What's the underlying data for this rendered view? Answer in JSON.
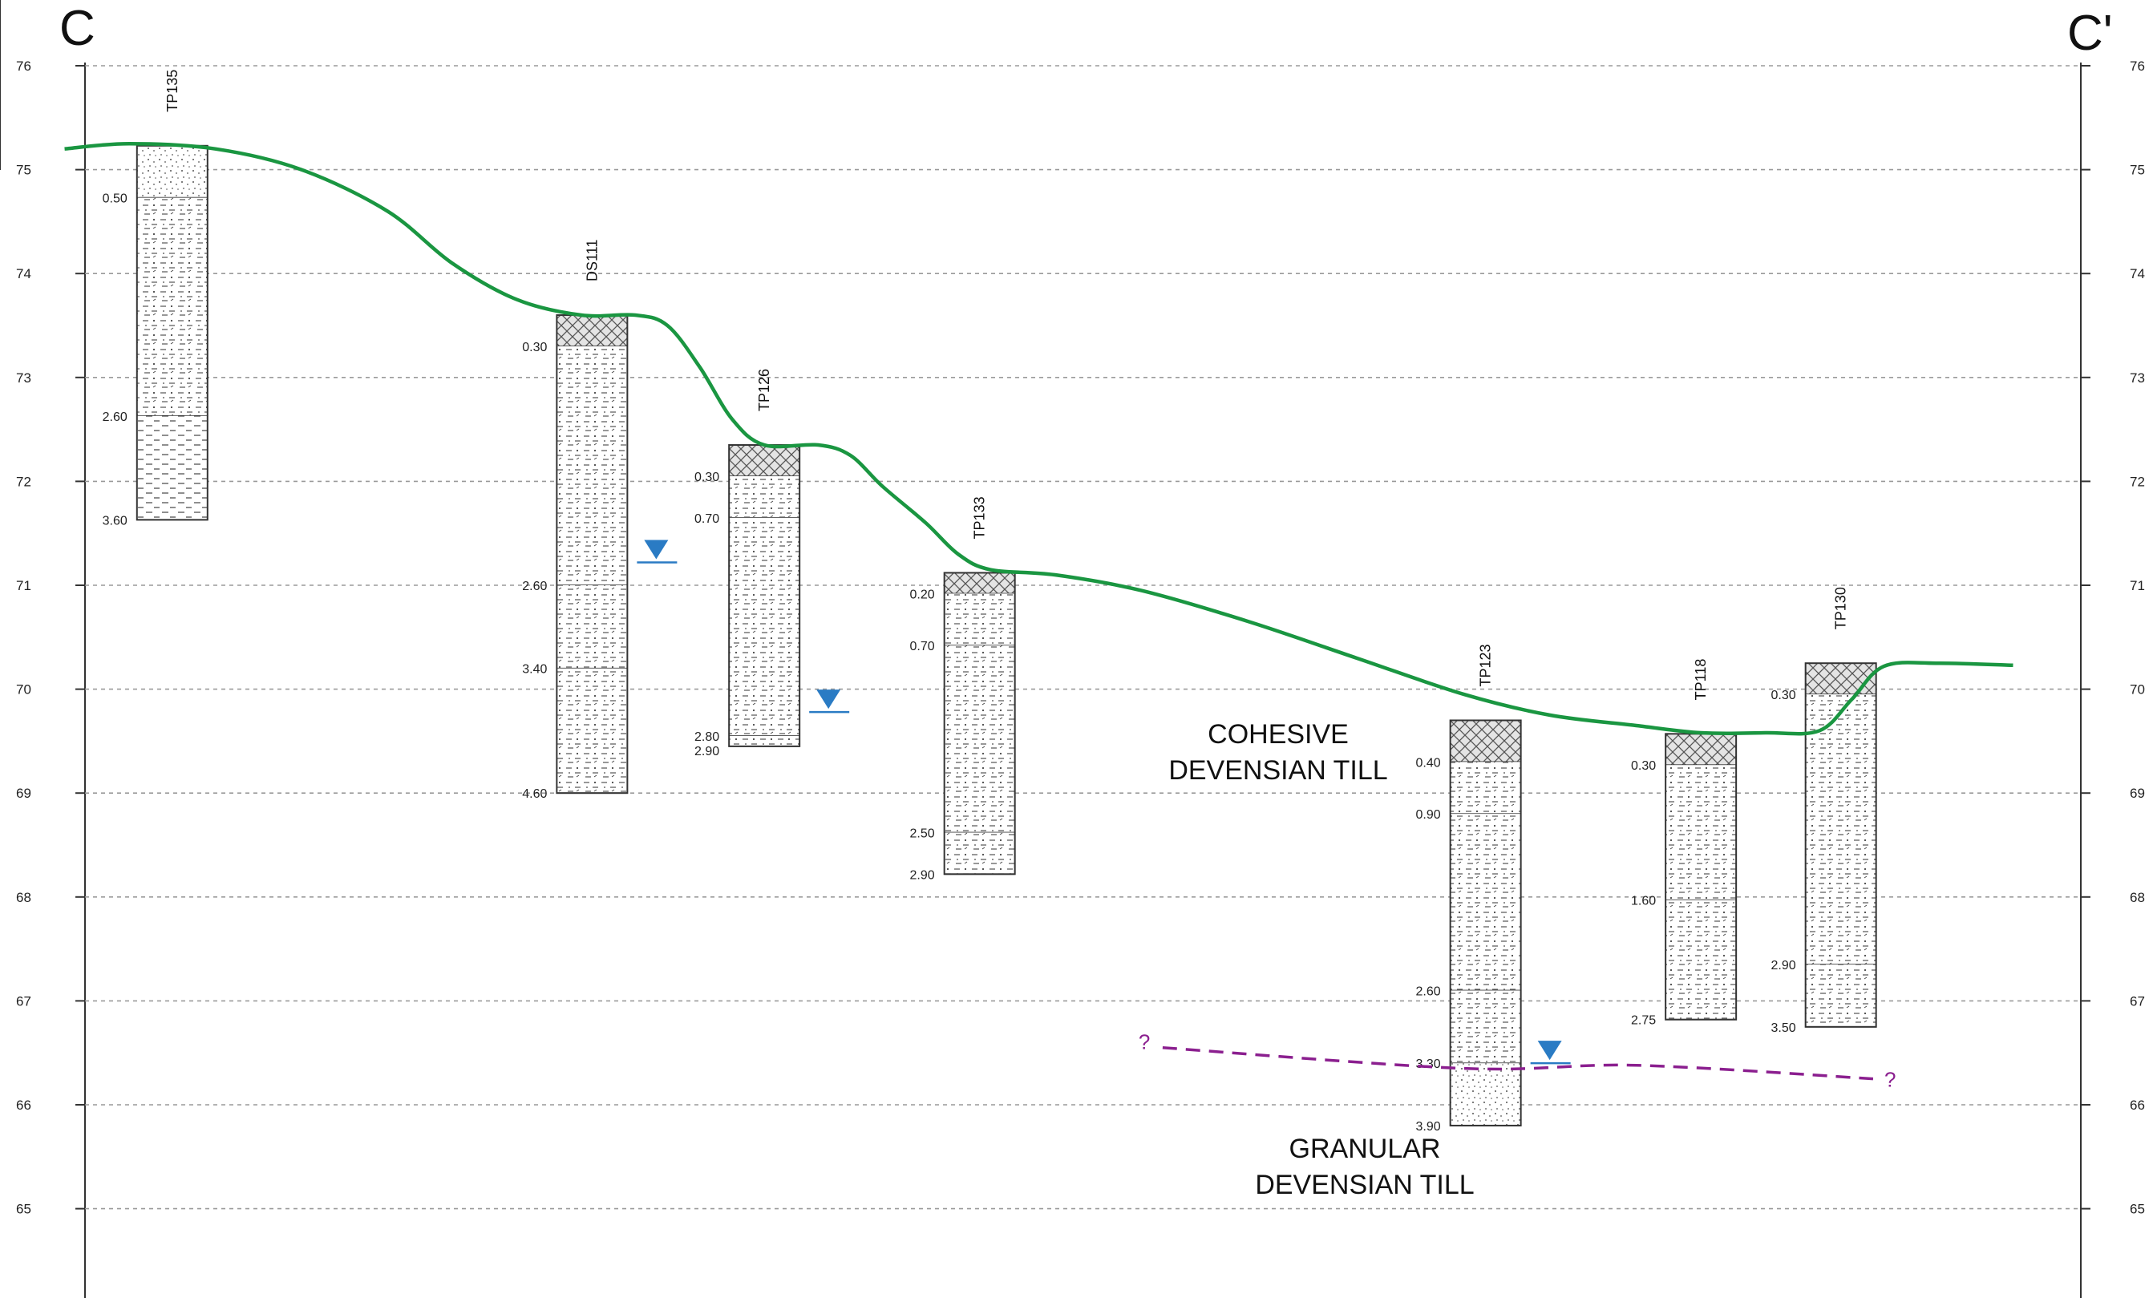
{
  "section": {
    "start_label": "C",
    "end_label": "C'",
    "elevation_ticks": [
      76,
      75,
      74,
      73,
      72,
      71,
      70,
      69,
      68,
      67,
      66,
      65
    ]
  },
  "units": {
    "cohesive": [
      "COHESIVE",
      "DEVENSIAN TILL"
    ],
    "granular": [
      "GRANULAR",
      "DEVENSIAN TILL"
    ]
  },
  "ground_profile": {
    "color": "#1a9641",
    "points": [
      [
        0.03,
        75.2
      ],
      [
        0.06,
        75.25
      ],
      [
        0.1,
        75.2
      ],
      [
        0.14,
        75.0
      ],
      [
        0.18,
        74.6
      ],
      [
        0.21,
        74.1
      ],
      [
        0.24,
        73.75
      ],
      [
        0.27,
        73.6
      ],
      [
        0.295,
        73.6
      ],
      [
        0.31,
        73.5
      ],
      [
        0.325,
        73.1
      ],
      [
        0.34,
        72.6
      ],
      [
        0.355,
        72.35
      ],
      [
        0.38,
        72.35
      ],
      [
        0.395,
        72.25
      ],
      [
        0.41,
        71.95
      ],
      [
        0.43,
        71.6
      ],
      [
        0.445,
        71.3
      ],
      [
        0.46,
        71.15
      ],
      [
        0.49,
        71.1
      ],
      [
        0.53,
        70.95
      ],
      [
        0.58,
        70.65
      ],
      [
        0.63,
        70.3
      ],
      [
        0.68,
        69.95
      ],
      [
        0.72,
        69.75
      ],
      [
        0.76,
        69.65
      ],
      [
        0.79,
        69.58
      ],
      [
        0.82,
        69.58
      ],
      [
        0.845,
        69.6
      ],
      [
        0.86,
        69.9
      ],
      [
        0.875,
        70.22
      ],
      [
        0.9,
        70.25
      ],
      [
        0.935,
        70.23
      ]
    ]
  },
  "boundary": {
    "color": "#8b1f8f",
    "query_left": "?",
    "query_right": "?",
    "points": [
      [
        0.54,
        66.55
      ],
      [
        0.68,
        66.35
      ],
      [
        0.76,
        66.38
      ],
      [
        0.87,
        66.25
      ]
    ]
  },
  "boreholes": [
    {
      "id": "TP135",
      "x": 0.08,
      "ground": 75.23,
      "layers": [
        {
          "top": 0,
          "bottom": 0.5,
          "soil": "sand"
        },
        {
          "top": 0.5,
          "bottom": 2.6,
          "soil": "clay"
        },
        {
          "top": 2.6,
          "bottom": 3.6,
          "soil": "silt"
        }
      ],
      "depths": [
        "0.50",
        "2.60",
        "3.60"
      ],
      "depth_values": [
        0.5,
        2.6,
        3.6
      ]
    },
    {
      "id": "DS111",
      "x": 0.275,
      "ground": 73.6,
      "layers": [
        {
          "top": 0,
          "bottom": 0.3,
          "soil": "topsoil"
        },
        {
          "top": 0.3,
          "bottom": 2.6,
          "soil": "clay"
        },
        {
          "top": 2.6,
          "bottom": 3.4,
          "soil": "clay"
        },
        {
          "top": 3.4,
          "bottom": 4.6,
          "soil": "clay"
        }
      ],
      "depths": [
        "0.30",
        "2.60",
        "3.40",
        "4.60"
      ],
      "depth_values": [
        0.3,
        2.6,
        3.4,
        4.6
      ],
      "water_strike": 71.22
    },
    {
      "id": "TP126",
      "x": 0.355,
      "ground": 72.35,
      "layers": [
        {
          "top": 0,
          "bottom": 0.3,
          "soil": "topsoil"
        },
        {
          "top": 0.3,
          "bottom": 0.7,
          "soil": "clay"
        },
        {
          "top": 0.7,
          "bottom": 2.8,
          "soil": "clay"
        },
        {
          "top": 2.8,
          "bottom": 2.9,
          "soil": "clay"
        }
      ],
      "depths": [
        "0.30",
        "0.70",
        "2.80",
        "2.90"
      ],
      "depth_values": [
        0.3,
        0.7,
        2.8,
        2.9
      ],
      "water_strike": 69.78
    },
    {
      "id": "TP133",
      "x": 0.455,
      "ground": 71.12,
      "layers": [
        {
          "top": 0,
          "bottom": 0.2,
          "soil": "topsoil"
        },
        {
          "top": 0.2,
          "bottom": 0.7,
          "soil": "clay"
        },
        {
          "top": 0.7,
          "bottom": 2.5,
          "soil": "clay"
        },
        {
          "top": 2.5,
          "bottom": 2.9,
          "soil": "clay"
        }
      ],
      "depths": [
        "0.20",
        "0.70",
        "2.50",
        "2.90"
      ],
      "depth_values": [
        0.2,
        0.7,
        2.5,
        2.9
      ]
    },
    {
      "id": "TP123",
      "x": 0.69,
      "ground": 69.7,
      "layers": [
        {
          "top": 0,
          "bottom": 0.4,
          "soil": "topsoil"
        },
        {
          "top": 0.4,
          "bottom": 0.9,
          "soil": "clay"
        },
        {
          "top": 0.9,
          "bottom": 2.6,
          "soil": "clay"
        },
        {
          "top": 2.6,
          "bottom": 3.3,
          "soil": "clay"
        },
        {
          "top": 3.3,
          "bottom": 3.9,
          "soil": "sand"
        }
      ],
      "depths": [
        "0.40",
        "0.90",
        "2.60",
        "3.30",
        "3.90"
      ],
      "depth_values": [
        0.4,
        0.9,
        2.6,
        3.3,
        3.9
      ],
      "water_strike": 66.4
    },
    {
      "id": "TP118",
      "x": 0.79,
      "ground": 69.57,
      "layers": [
        {
          "top": 0,
          "bottom": 0.3,
          "soil": "topsoil"
        },
        {
          "top": 0.3,
          "bottom": 1.6,
          "soil": "clay"
        },
        {
          "top": 1.6,
          "bottom": 2.75,
          "soil": "clay"
        }
      ],
      "depths": [
        "0.30",
        "1.60",
        "2.75"
      ],
      "depth_values": [
        0.3,
        1.6,
        2.75
      ]
    },
    {
      "id": "TP130",
      "x": 0.855,
      "ground": 70.25,
      "layers": [
        {
          "top": 0,
          "bottom": 0.3,
          "soil": "topsoil"
        },
        {
          "top": 0.3,
          "bottom": 2.9,
          "soil": "clay"
        },
        {
          "top": 2.9,
          "bottom": 3.5,
          "soil": "clay"
        }
      ],
      "depths": [
        "0.30",
        "2.90",
        "3.50"
      ],
      "depth_values": [
        0.3,
        2.9,
        3.5
      ]
    }
  ],
  "colors": {
    "ground_line": "#1a9641",
    "water_marker": "#2a7bc4",
    "boundary_line": "#8b1f8f",
    "grid": "#9a9a9a"
  }
}
